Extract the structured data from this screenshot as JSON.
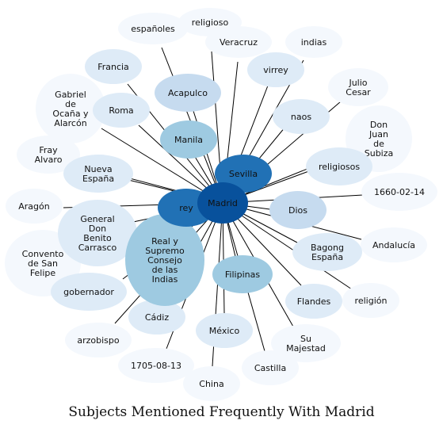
{
  "title": "Subjects Mentioned Frequently With Madrid",
  "palette": {
    "level0": "#f4f8fd",
    "level1": "#deebf7",
    "level2": "#c6dbef",
    "level3": "#9ecae1",
    "level4": "#2171b5",
    "level5": "#08519c",
    "edge": "#000000"
  },
  "center": "Madrid",
  "nodes": [
    {
      "label": "Madrid",
      "level": 5
    },
    {
      "label": "rey",
      "level": 4
    },
    {
      "label": "Sevilla",
      "level": 4
    },
    {
      "label": "Real y Supremo Consejo de las Indias",
      "level": 3
    },
    {
      "label": "Manila",
      "level": 3
    },
    {
      "label": "Filipinas",
      "level": 3
    },
    {
      "label": "Acapulco",
      "level": 2
    },
    {
      "label": "Dios",
      "level": 2
    },
    {
      "label": "Nueva España",
      "level": 1
    },
    {
      "label": "General Don Benito Carrasco",
      "level": 1
    },
    {
      "label": "Roma",
      "level": 1
    },
    {
      "label": "Francia",
      "level": 1
    },
    {
      "label": "virrey",
      "level": 1
    },
    {
      "label": "naos",
      "level": 1
    },
    {
      "label": "religiosos",
      "level": 1
    },
    {
      "label": "Bagong España",
      "level": 1
    },
    {
      "label": "Flandes",
      "level": 1
    },
    {
      "label": "México",
      "level": 1
    },
    {
      "label": "Cádiz",
      "level": 1
    },
    {
      "label": "gobernador",
      "level": 1
    },
    {
      "label": "españoles",
      "level": 0
    },
    {
      "label": "religioso",
      "level": 0
    },
    {
      "label": "Veracruz",
      "level": 0
    },
    {
      "label": "indias",
      "level": 0
    },
    {
      "label": "Julio Cesar",
      "level": 0
    },
    {
      "label": "Don Juan de Subiza",
      "level": 0
    },
    {
      "label": "1660-02-14",
      "level": 0
    },
    {
      "label": "Andalucía",
      "level": 0
    },
    {
      "label": "religión",
      "level": 0
    },
    {
      "label": "Su Majestad",
      "level": 0
    },
    {
      "label": "Castilla",
      "level": 0
    },
    {
      "label": "China",
      "level": 0
    },
    {
      "label": "1705-08-13",
      "level": 0
    },
    {
      "label": "arzobispo",
      "level": 0
    },
    {
      "label": "Convento de San Felipe",
      "level": 0
    },
    {
      "label": "Aragón",
      "level": 0
    },
    {
      "label": "Fray Alvaro",
      "level": 0
    },
    {
      "label": "Gabriel de Ocaña y Alarcón",
      "level": 0
    }
  ]
}
